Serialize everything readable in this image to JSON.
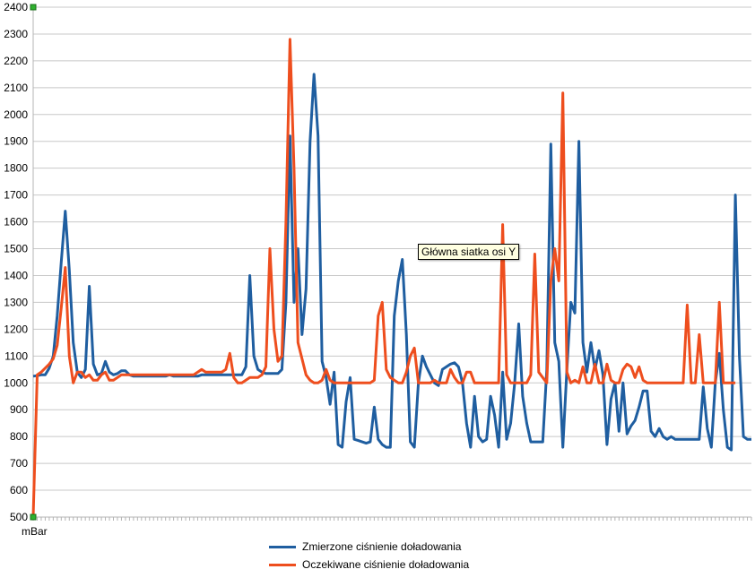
{
  "chart_data": {
    "type": "line",
    "ylabel": "",
    "xlabel": "mBar",
    "ylim": [
      500,
      2400
    ],
    "ytick_step": 100,
    "grid": true,
    "legend_position": "bottom",
    "tooltip": "Główna siatka osi Y",
    "colors": {
      "blue": "#1f5ea0",
      "orange": "#ee4e1e",
      "grid": "#c8c8c8",
      "handle": "#2fb12f"
    },
    "series": [
      {
        "name": "Zmierzone ciśnienie doładowania",
        "color": "#1f5ea0",
        "values": [
          1025,
          1027,
          1030,
          1030,
          1055,
          1100,
          1250,
          1450,
          1640,
          1420,
          1150,
          1040,
          1020,
          1050,
          1360,
          1070,
          1030,
          1035,
          1080,
          1040,
          1030,
          1035,
          1045,
          1045,
          1030,
          1025,
          1025,
          1025,
          1025,
          1025,
          1025,
          1025,
          1025,
          1025,
          1030,
          1025,
          1025,
          1025,
          1025,
          1025,
          1025,
          1025,
          1030,
          1030,
          1030,
          1030,
          1030,
          1030,
          1030,
          1030,
          1030,
          1030,
          1030,
          1060,
          1400,
          1100,
          1050,
          1040,
          1035,
          1035,
          1035,
          1035,
          1050,
          1300,
          1920,
          1300,
          1500,
          1180,
          1350,
          1900,
          2150,
          1920,
          1080,
          1020,
          920,
          1040,
          770,
          760,
          930,
          1020,
          790,
          785,
          780,
          775,
          780,
          910,
          790,
          770,
          760,
          760,
          1250,
          1380,
          1460,
          1180,
          780,
          760,
          1000,
          1100,
          1060,
          1030,
          1000,
          990,
          1050,
          1060,
          1070,
          1075,
          1060,
          1000,
          850,
          760,
          950,
          800,
          780,
          790,
          950,
          880,
          760,
          1040,
          790,
          850,
          1000,
          1220,
          950,
          850,
          780,
          780,
          780,
          780,
          1050,
          1890,
          1150,
          1080,
          760,
          1050,
          1300,
          1260,
          1900,
          1150,
          1040,
          1150,
          1050,
          1120,
          1030,
          770,
          940,
          1000,
          820,
          1000,
          810,
          840,
          860,
          910,
          970,
          970,
          820,
          800,
          830,
          800,
          790,
          800,
          790,
          790,
          790,
          790,
          790,
          790,
          790,
          985,
          830,
          760,
          1000,
          1110,
          900,
          760,
          750,
          1700,
          1100,
          800,
          790,
          790
        ]
      },
      {
        "name": "Oczekiwane ciśnienie doładowania",
        "color": "#ee4e1e",
        "values": [
          500,
          1030,
          1040,
          1055,
          1070,
          1090,
          1140,
          1280,
          1430,
          1100,
          1000,
          1040,
          1040,
          1020,
          1030,
          1010,
          1010,
          1030,
          1040,
          1010,
          1010,
          1020,
          1030,
          1030,
          1030,
          1030,
          1030,
          1030,
          1030,
          1030,
          1030,
          1030,
          1030,
          1030,
          1030,
          1030,
          1030,
          1030,
          1030,
          1030,
          1030,
          1040,
          1050,
          1040,
          1040,
          1040,
          1040,
          1040,
          1050,
          1110,
          1020,
          1000,
          1000,
          1010,
          1020,
          1020,
          1020,
          1030,
          1060,
          1500,
          1200,
          1080,
          1100,
          1600,
          2280,
          1800,
          1150,
          1090,
          1030,
          1010,
          1000,
          1000,
          1010,
          1050,
          1010,
          1000,
          1000,
          1000,
          1000,
          1000,
          1000,
          1000,
          1000,
          1000,
          1000,
          1010,
          1250,
          1300,
          1050,
          1020,
          1010,
          1000,
          1000,
          1040,
          1100,
          1130,
          1000,
          1000,
          1000,
          1000,
          1010,
          1000,
          1000,
          1000,
          1050,
          1020,
          1000,
          1000,
          1040,
          1040,
          1000,
          1000,
          1000,
          1000,
          1000,
          1000,
          1000,
          1590,
          1030,
          1000,
          1000,
          1000,
          1000,
          1000,
          1030,
          1480,
          1040,
          1020,
          1000,
          1380,
          1500,
          1380,
          2080,
          1040,
          1000,
          1010,
          1000,
          1060,
          1000,
          1000,
          1070,
          1000,
          1000,
          1070,
          1010,
          1000,
          1000,
          1050,
          1070,
          1060,
          1020,
          1060,
          1010,
          1000,
          1000,
          1000,
          1000,
          1000,
          1000,
          1000,
          1000,
          1000,
          1000,
          1290,
          1000,
          1000,
          1180,
          1000,
          1000,
          1000,
          1000,
          1300,
          1000,
          1000,
          1000,
          1000
        ]
      }
    ]
  }
}
